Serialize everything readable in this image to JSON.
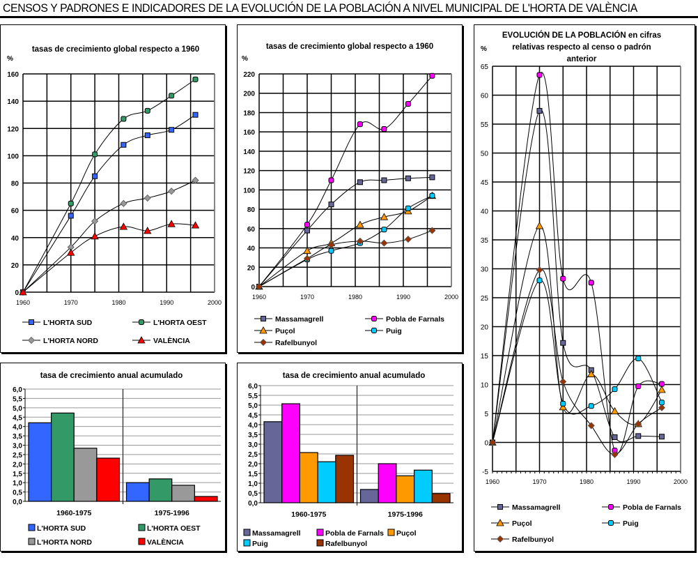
{
  "page_title": "CENSOS Y PADRONES E INDICADORES DE LA EVOLUCIÓN DE LA POBLACIÓN A NIVEL MUNICIPAL DE L'HORTA DE VALÈNCIA",
  "chart_data": [
    {
      "id": "comarcas-global",
      "type": "line",
      "title": "tasas de crecimiento global respecto a  1960",
      "ylabel": "%",
      "xlabel": "",
      "xlim": [
        1960,
        2000
      ],
      "ylim": [
        0,
        160
      ],
      "xticks": [
        1960,
        1970,
        1980,
        1990,
        2000
      ],
      "yticks": [
        0,
        20,
        40,
        60,
        80,
        100,
        120,
        140,
        160
      ],
      "grid": true,
      "legend_position": "bottom",
      "x": [
        1960,
        1970,
        1975,
        1981,
        1986,
        1991,
        1996
      ],
      "series": [
        {
          "name": "L'HORTA SUD",
          "marker": "square",
          "color": "#3366ff",
          "values": [
            0,
            56,
            85,
            108,
            115,
            119,
            130
          ]
        },
        {
          "name": "L'HORTA OEST",
          "marker": "circle",
          "color": "#339966",
          "values": [
            0,
            65,
            101,
            127,
            133,
            144,
            156
          ]
        },
        {
          "name": "L'HORTA NORD",
          "marker": "diamond",
          "color": "#999999",
          "values": [
            0,
            33,
            52,
            65,
            69,
            74,
            82
          ]
        },
        {
          "name": "VALÈNCIA",
          "marker": "triangle",
          "color": "#ff0000",
          "values": [
            0,
            29,
            41,
            48,
            45,
            50,
            49
          ]
        }
      ]
    },
    {
      "id": "municipios-global",
      "type": "line",
      "title": "tasas de crecimiento global respecto a  1960",
      "ylabel": "%",
      "xlabel": "",
      "xlim": [
        1960,
        2000
      ],
      "ylim": [
        0,
        220
      ],
      "xticks": [
        1960,
        1970,
        1980,
        1990,
        2000
      ],
      "yticks": [
        0,
        20,
        40,
        60,
        80,
        100,
        120,
        140,
        160,
        180,
        200,
        220
      ],
      "grid": true,
      "legend_position": "bottom",
      "x": [
        1960,
        1970,
        1975,
        1981,
        1986,
        1991,
        1996
      ],
      "series": [
        {
          "name": "Massamagrell",
          "marker": "square",
          "color": "#666699",
          "values": [
            0,
            58,
            85,
            108,
            110,
            112,
            113
          ]
        },
        {
          "name": "Pobla de Farnals",
          "marker": "circle",
          "color": "#ff00ff",
          "values": [
            0,
            64,
            110,
            168,
            163,
            189,
            218
          ]
        },
        {
          "name": "Puçol",
          "marker": "triangle",
          "color": "#ff9900",
          "values": [
            0,
            37,
            45,
            64,
            72,
            78,
            94
          ]
        },
        {
          "name": "Puig",
          "marker": "circle",
          "color": "#00ccff",
          "values": [
            0,
            28,
            37,
            45,
            59,
            81,
            94
          ]
        },
        {
          "name": "Rafelbunyol",
          "marker": "diamond",
          "color": "#993300",
          "values": [
            0,
            29,
            43,
            47,
            45,
            49,
            58
          ]
        }
      ]
    },
    {
      "id": "municipios-relativa",
      "type": "line",
      "title": "EVOLUCIÓN DE LA POBLACIÓN en cifras relativas respecto al censo o padrón anterior",
      "title_lines": [
        "EVOLUCIÓN DE LA POBLACIÓN en cifras",
        "relativas respecto al censo o padrón",
        "anterior"
      ],
      "ylabel": "%",
      "xlabel": "",
      "xlim": [
        1960,
        2000
      ],
      "ylim": [
        -5,
        65
      ],
      "xticks": [
        1960,
        1970,
        1980,
        1990,
        2000
      ],
      "yticks": [
        -5,
        0,
        5,
        10,
        15,
        20,
        25,
        30,
        35,
        40,
        45,
        50,
        55,
        60,
        65
      ],
      "grid": true,
      "legend_position": "bottom",
      "x": [
        1960,
        1970,
        1975,
        1981,
        1986,
        1991,
        1996
      ],
      "series": [
        {
          "name": "Massamagrell",
          "marker": "square",
          "color": "#666699",
          "values": [
            0,
            57.3,
            17.2,
            12.5,
            0.9,
            1.1,
            1.0
          ]
        },
        {
          "name": "Pobla de Farnals",
          "marker": "circle",
          "color": "#ff00ff",
          "values": [
            0,
            63.5,
            28.3,
            27.6,
            -1.4,
            9.7,
            10.1
          ]
        },
        {
          "name": "Puçol",
          "marker": "triangle",
          "color": "#ff9900",
          "values": [
            0,
            37.4,
            6.1,
            11.8,
            5.4,
            3.2,
            9.1
          ]
        },
        {
          "name": "Puig",
          "marker": "circle",
          "color": "#00ccff",
          "values": [
            0,
            28.0,
            6.7,
            6.3,
            9.2,
            14.5,
            6.9
          ]
        },
        {
          "name": "Rafelbunyol",
          "marker": "diamond",
          "color": "#993300",
          "values": [
            0,
            29.8,
            10.5,
            2.9,
            -2.1,
            3.2,
            6.0
          ]
        }
      ]
    },
    {
      "id": "comarcas-anual",
      "type": "bar",
      "title": "tasa de crecimiento anual acumulado",
      "ylabel": "",
      "xlabel": "",
      "ylim": [
        0,
        6
      ],
      "yticks": [
        "0,0",
        "0,5",
        "1,0",
        "1,5",
        "2,0",
        "2,5",
        "3,0",
        "3,5",
        "4,0",
        "4,5",
        "5,0",
        "5,5",
        "6,0"
      ],
      "categories": [
        "1960-1975",
        "1975-1996"
      ],
      "grid": true,
      "legend_position": "bottom",
      "series": [
        {
          "name": "L'HORTA SUD",
          "color": "#3366ff",
          "values": [
            4.2,
            1.0
          ]
        },
        {
          "name": "L'HORTA OEST",
          "color": "#339966",
          "values": [
            4.72,
            1.2
          ]
        },
        {
          "name": "L'HORTA NORD",
          "color": "#999999",
          "values": [
            2.84,
            0.86
          ]
        },
        {
          "name": "VALÈNCIA",
          "color": "#ff0000",
          "values": [
            2.31,
            0.26
          ]
        }
      ]
    },
    {
      "id": "municipios-anual",
      "type": "bar",
      "title": "tasa de crecimiento anual acumulado",
      "ylabel": "",
      "xlabel": "",
      "ylim": [
        0,
        6
      ],
      "yticks": [
        "0,0",
        "0,5",
        "1,0",
        "1,5",
        "2,0",
        "2,5",
        "3,0",
        "3,5",
        "4,0",
        "4,5",
        "5,0",
        "5,5",
        "6,0"
      ],
      "categories": [
        "1960-1975",
        "1975-1996"
      ],
      "grid": true,
      "legend_position": "bottom",
      "series": [
        {
          "name": "Massamagrell",
          "color": "#666699",
          "values": [
            4.15,
            0.68
          ]
        },
        {
          "name": "Pobla de Farnals",
          "color": "#ff00ff",
          "values": [
            5.07,
            2.0
          ]
        },
        {
          "name": "Puçol",
          "color": "#ff9900",
          "values": [
            2.57,
            1.38
          ]
        },
        {
          "name": "Puig",
          "color": "#00ccff",
          "values": [
            2.1,
            1.67
          ]
        },
        {
          "name": "Rafelbunyol",
          "color": "#993300",
          "values": [
            2.43,
            0.47
          ]
        }
      ]
    }
  ]
}
